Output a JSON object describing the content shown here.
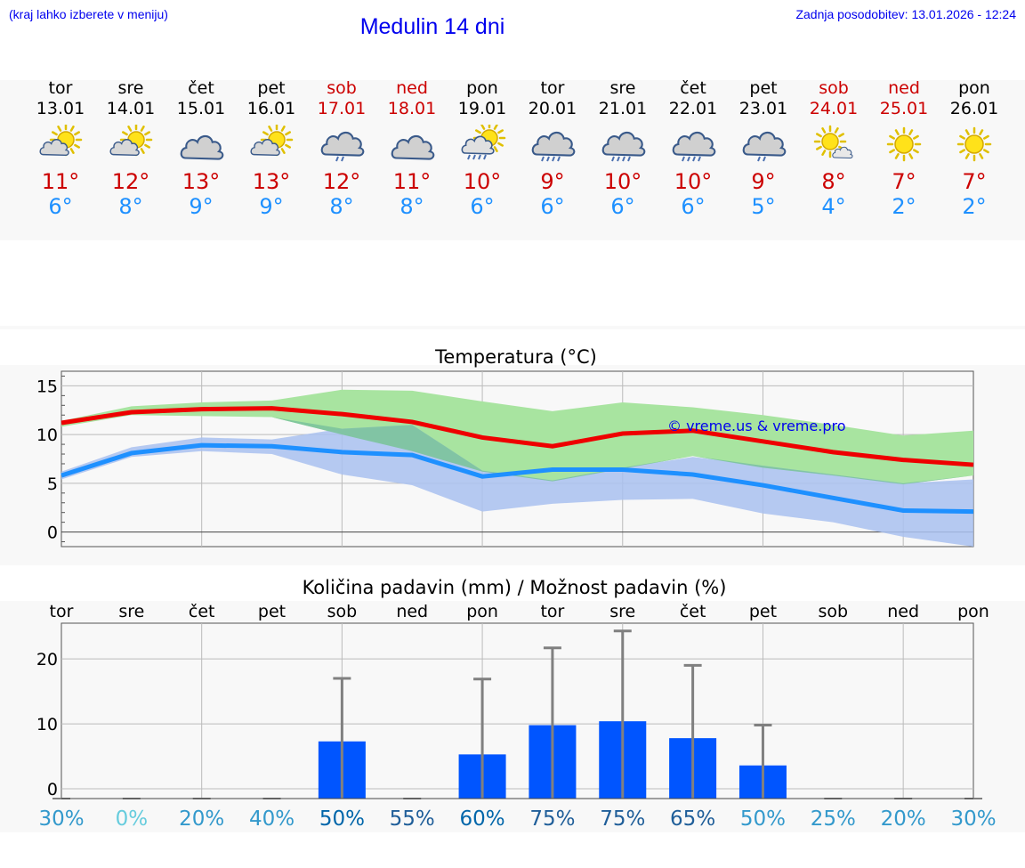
{
  "header": {
    "note": "(kraj lahko izberete v meniju)",
    "title": "Medulin 14 dni",
    "updated": "Zadnja posodobitev: 13.01.2026 - 12:24"
  },
  "days": [
    {
      "name": "tor",
      "date": "13.01",
      "icon": "sun-cloud-icon",
      "tmax": "11°",
      "tmin": "6°",
      "weekend": false
    },
    {
      "name": "sre",
      "date": "14.01",
      "icon": "sun-cloud-icon",
      "tmax": "12°",
      "tmin": "8°",
      "weekend": false
    },
    {
      "name": "čet",
      "date": "15.01",
      "icon": "cloud-icon",
      "tmax": "13°",
      "tmin": "9°",
      "weekend": false
    },
    {
      "name": "pet",
      "date": "16.01",
      "icon": "sun-cloud-icon",
      "tmax": "13°",
      "tmin": "9°",
      "weekend": false
    },
    {
      "name": "sob",
      "date": "17.01",
      "icon": "cloud-rain-icon",
      "tmax": "12°",
      "tmin": "8°",
      "weekend": true
    },
    {
      "name": "ned",
      "date": "18.01",
      "icon": "cloud-icon",
      "tmax": "11°",
      "tmin": "8°",
      "weekend": true
    },
    {
      "name": "pon",
      "date": "19.01",
      "icon": "sun-cloud-rain-icon",
      "tmax": "10°",
      "tmin": "6°",
      "weekend": false
    },
    {
      "name": "tor",
      "date": "20.01",
      "icon": "cloud-heavy-rain-icon",
      "tmax": "9°",
      "tmin": "6°",
      "weekend": false
    },
    {
      "name": "sre",
      "date": "21.01",
      "icon": "cloud-heavy-rain-icon",
      "tmax": "10°",
      "tmin": "6°",
      "weekend": false
    },
    {
      "name": "čet",
      "date": "22.01",
      "icon": "cloud-heavy-rain-icon",
      "tmax": "10°",
      "tmin": "6°",
      "weekend": false
    },
    {
      "name": "pet",
      "date": "23.01",
      "icon": "cloud-rain-icon",
      "tmax": "9°",
      "tmin": "5°",
      "weekend": false
    },
    {
      "name": "sob",
      "date": "24.01",
      "icon": "sun-small-cloud-icon",
      "tmax": "8°",
      "tmin": "4°",
      "weekend": true
    },
    {
      "name": "ned",
      "date": "25.01",
      "icon": "sun-icon",
      "tmax": "7°",
      "tmin": "2°",
      "weekend": true
    },
    {
      "name": "pon",
      "date": "26.01",
      "icon": "sun-icon",
      "tmax": "7°",
      "tmin": "2°",
      "weekend": false
    }
  ],
  "colors": {
    "max_line": "#ee0000",
    "min_line": "#1e90ff",
    "max_band": "#a8e4a0",
    "min_band": "#a9c1f0",
    "overlap_band": "#7cc39c",
    "bar": "#0055ff",
    "whisker": "#808080",
    "link": "#0000ee"
  },
  "chart_data": [
    {
      "type": "line",
      "title": "Temperatura (°C)",
      "watermark": "© vreme.us & vreme.pro",
      "x": [
        0,
        1,
        2,
        3,
        4,
        5,
        6,
        7,
        8,
        9,
        10,
        11,
        12,
        13
      ],
      "ylim": [
        -1.5,
        16.5
      ],
      "yticks": [
        0,
        5,
        10,
        15
      ],
      "series": [
        {
          "name": "max",
          "values": [
            11.2,
            12.3,
            12.6,
            12.7,
            12.1,
            11.3,
            9.7,
            8.8,
            10.1,
            10.4,
            9.3,
            8.2,
            7.4,
            6.9
          ],
          "band_low": [
            10.8,
            12.0,
            11.9,
            11.8,
            10.0,
            8.3,
            6.2,
            5.2,
            6.5,
            7.8,
            6.6,
            5.8,
            4.9,
            5.8
          ],
          "band_high": [
            11.4,
            12.9,
            13.3,
            13.5,
            14.6,
            14.5,
            13.4,
            12.4,
            13.3,
            12.8,
            12.0,
            11.0,
            9.9,
            10.4
          ]
        },
        {
          "name": "min",
          "values": [
            5.8,
            8.1,
            8.9,
            8.8,
            8.2,
            7.9,
            5.7,
            6.4,
            6.4,
            5.9,
            4.8,
            3.5,
            2.2,
            2.1
          ],
          "band_low": [
            5.4,
            7.7,
            8.3,
            8.0,
            5.9,
            4.8,
            2.1,
            2.9,
            3.3,
            3.4,
            1.9,
            1.0,
            -0.5,
            -1.5
          ],
          "band_high": [
            6.2,
            8.7,
            9.7,
            9.5,
            10.6,
            11.0,
            6.3,
            5.3,
            6.6,
            7.7,
            6.8,
            5.9,
            5.0,
            5.4
          ]
        }
      ]
    },
    {
      "type": "bar",
      "title": "Količina padavin (mm) / Možnost padavin (%)",
      "categories": [
        "tor",
        "sre",
        "čet",
        "pet",
        "sob",
        "ned",
        "pon",
        "tor",
        "sre",
        "čet",
        "pet",
        "sob",
        "ned",
        "pon"
      ],
      "values": [
        0,
        0,
        0,
        0,
        7.3,
        0,
        5.3,
        9.8,
        10.4,
        7.8,
        3.6,
        0,
        0,
        0
      ],
      "whisker_high": [
        0,
        0,
        0,
        0,
        17.0,
        0,
        16.9,
        21.7,
        24.3,
        19.0,
        9.8,
        0,
        0,
        0
      ],
      "probability": [
        "30%",
        "0%",
        "20%",
        "40%",
        "50%",
        "55%",
        "60%",
        "75%",
        "75%",
        "65%",
        "50%",
        "25%",
        "20%",
        "30%"
      ],
      "probability_colors": [
        "#3399cc",
        "#66ccdd",
        "#3399cc",
        "#3399cc",
        "#0066aa",
        "#1f5e99",
        "#0066aa",
        "#1f5e99",
        "#1f5e99",
        "#1f5e99",
        "#3399cc",
        "#3399cc",
        "#3399cc",
        "#3399cc"
      ],
      "ylim": [
        -1.5,
        25.5
      ],
      "yticks": [
        0,
        10,
        20
      ]
    }
  ]
}
